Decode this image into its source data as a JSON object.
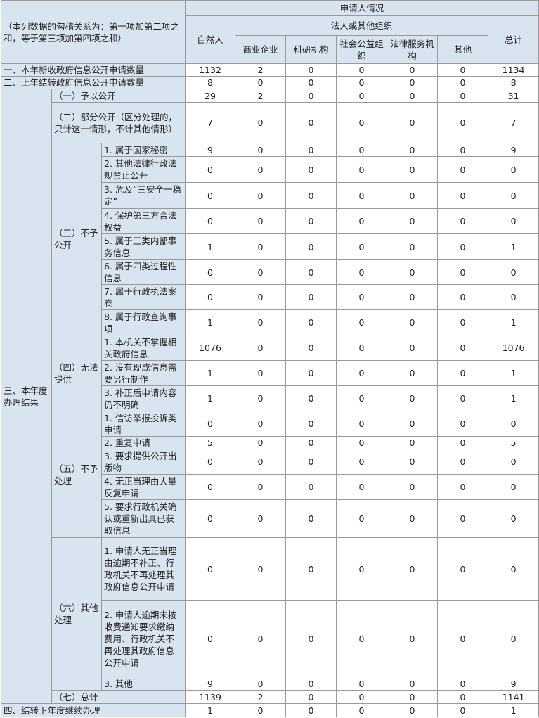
{
  "header": {
    "corner": "（本列数据的勾稽关系为：第一项加第二项之和，等于第三项加第四项之和）",
    "group": "申请人情况",
    "subgroup": "法人或其他组织",
    "natural": "自然人",
    "orgs": [
      "商业企业",
      "科研机构",
      "社会公益组织",
      "法律服务机构",
      "其他"
    ],
    "total": "总计"
  },
  "row1": {
    "label": "一、本年新收政府信息公开申请数量",
    "values": [
      "1132",
      "2",
      "0",
      "0",
      "0",
      "0",
      "1134"
    ]
  },
  "row2": {
    "label": "二、上年结转政府信息公开申请数量",
    "values": [
      "8",
      "0",
      "0",
      "0",
      "0",
      "0",
      "8"
    ]
  },
  "section3": {
    "label": "三、本年度办理结果",
    "groups": [
      {
        "label": "（一）予以公开",
        "values": [
          "29",
          "2",
          "0",
          "0",
          "0",
          "0",
          "31"
        ]
      },
      {
        "label": "（二）部分公开（区分处理的，只计这一情形，不计其他情形）",
        "values": [
          "7",
          "0",
          "0",
          "0",
          "0",
          "0",
          "7"
        ]
      },
      {
        "label": "（三）不予公开",
        "items": [
          {
            "label": "1. 属于国家秘密",
            "values": [
              "9",
              "0",
              "0",
              "0",
              "0",
              "0",
              "9"
            ]
          },
          {
            "label": "2. 其他法律行政法规禁止公开",
            "values": [
              "0",
              "0",
              "0",
              "0",
              "0",
              "0",
              "0"
            ]
          },
          {
            "label": "3. 危及“三安全一稳定”",
            "values": [
              "0",
              "0",
              "0",
              "0",
              "0",
              "0",
              "0"
            ]
          },
          {
            "label": "4. 保护第三方合法权益",
            "values": [
              "0",
              "0",
              "0",
              "0",
              "0",
              "0",
              "0"
            ]
          },
          {
            "label": "5. 属于三类内部事务信息",
            "values": [
              "1",
              "0",
              "0",
              "0",
              "0",
              "0",
              "1"
            ]
          },
          {
            "label": "6. 属于四类过程性信息",
            "values": [
              "0",
              "0",
              "0",
              "0",
              "0",
              "0",
              "0"
            ]
          },
          {
            "label": "7. 属于行政执法案卷",
            "values": [
              "0",
              "0",
              "0",
              "0",
              "0",
              "0",
              "0"
            ]
          },
          {
            "label": "8. 属于行政查询事项",
            "values": [
              "1",
              "0",
              "0",
              "0",
              "0",
              "0",
              "1"
            ]
          }
        ]
      },
      {
        "label": "（四）无法提供",
        "items": [
          {
            "label": "1. 本机关不掌握相关政府信息",
            "values": [
              "1076",
              "0",
              "0",
              "0",
              "0",
              "0",
              "1076"
            ]
          },
          {
            "label": "2. 没有现成信息需要另行制作",
            "values": [
              "1",
              "0",
              "0",
              "0",
              "0",
              "0",
              "1"
            ]
          },
          {
            "label": "3. 补正后申请内容仍不明确",
            "values": [
              "1",
              "0",
              "0",
              "0",
              "0",
              "0",
              "1"
            ]
          }
        ]
      },
      {
        "label": "（五）不予处理",
        "items": [
          {
            "label": "1. 信访举报投诉类申请",
            "values": [
              "0",
              "0",
              "0",
              "0",
              "0",
              "0",
              "0"
            ]
          },
          {
            "label": "2. 重复申请",
            "values": [
              "5",
              "0",
              "0",
              "0",
              "0",
              "0",
              "5"
            ]
          },
          {
            "label": "3. 要求提供公开出版物",
            "values": [
              "0",
              "0",
              "0",
              "0",
              "0",
              "0",
              "0"
            ]
          },
          {
            "label": "4. 无正当理由大量反复申请",
            "values": [
              "0",
              "0",
              "0",
              "0",
              "0",
              "0",
              "0"
            ]
          },
          {
            "label": "5. 要求行政机关确认或重新出具已获取信息",
            "values": [
              "0",
              "0",
              "0",
              "0",
              "0",
              "0",
              "0"
            ]
          }
        ]
      },
      {
        "label": "（六）其他处理",
        "items": [
          {
            "label": "1. 申请人无正当理由逾期不补正、行政机关不再处理其政府信息公开申请",
            "values": [
              "0",
              "0",
              "0",
              "0",
              "0",
              "0",
              "0"
            ]
          },
          {
            "label": "2. 申请人逾期未按收费通知要求缴纳费用、行政机关不再处理其政府信息公开申请",
            "values": [
              "0",
              "0",
              "0",
              "0",
              "0",
              "0",
              "0"
            ]
          },
          {
            "label": "3. 其他",
            "values": [
              "9",
              "0",
              "0",
              "0",
              "0",
              "0",
              "9"
            ]
          }
        ]
      },
      {
        "label": "（七）总计",
        "values": [
          "1139",
          "2",
          "0",
          "0",
          "0",
          "0",
          "1141"
        ]
      }
    ]
  },
  "row4": {
    "label": "四、结转下年度继续办理",
    "values": [
      "1",
      "0",
      "0",
      "0",
      "0",
      "0",
      "1"
    ]
  }
}
